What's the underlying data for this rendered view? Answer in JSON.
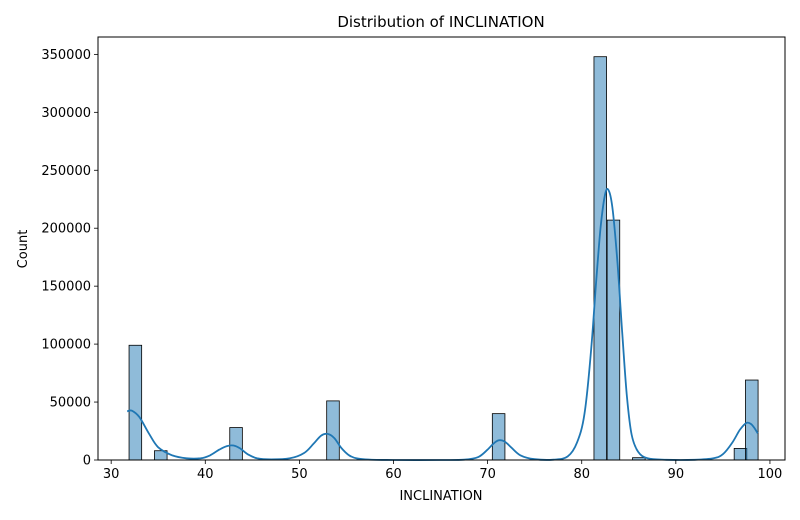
{
  "chart_data": {
    "type": "bar",
    "title": "Distribution of INCLINATION",
    "xlabel": "INCLINATION",
    "ylabel": "Count",
    "xlim": [
      28.6,
      101.6
    ],
    "ylim": [
      0,
      365000
    ],
    "xticks": [
      30,
      40,
      50,
      60,
      70,
      80,
      90,
      100
    ],
    "yticks": [
      0,
      50000,
      100000,
      150000,
      200000,
      250000,
      300000,
      350000
    ],
    "bar_color": "#1f77b4",
    "bin_width": 1.34,
    "bins": [
      {
        "start": 31.9,
        "count": 99000
      },
      {
        "start": 34.6,
        "count": 8000
      },
      {
        "start": 42.6,
        "count": 28000
      },
      {
        "start": 52.9,
        "count": 51000
      },
      {
        "start": 70.5,
        "count": 40000
      },
      {
        "start": 81.3,
        "count": 348000
      },
      {
        "start": 82.7,
        "count": 207000
      },
      {
        "start": 85.4,
        "count": 2000
      },
      {
        "start": 96.2,
        "count": 10000
      },
      {
        "start": 97.4,
        "count": 69000
      }
    ],
    "kde": {
      "x": [
        31.7,
        32.2,
        33.0,
        34.0,
        35.0,
        36.5,
        38.0,
        39.5,
        40.5,
        41.5,
        42.3,
        43.0,
        43.7,
        44.5,
        45.5,
        47.0,
        49.0,
        50.5,
        51.5,
        52.3,
        53.0,
        53.7,
        54.5,
        55.5,
        57.0,
        60.0,
        65.0,
        67.5,
        69.0,
        70.0,
        70.6,
        71.2,
        71.8,
        72.5,
        73.5,
        75.0,
        77.0,
        78.5,
        79.5,
        80.3,
        81.0,
        81.5,
        82.0,
        82.5,
        82.9,
        83.3,
        83.8,
        84.3,
        84.8,
        85.3,
        86.0,
        87.0,
        89.0,
        92.0,
        94.0,
        95.0,
        96.0,
        96.8,
        97.5,
        98.0,
        98.4,
        98.7
      ],
      "y": [
        42000,
        42500,
        37000,
        23000,
        11000,
        4000,
        1500,
        1500,
        4000,
        9000,
        12000,
        12500,
        10000,
        5000,
        1500,
        500,
        1500,
        6000,
        14000,
        21000,
        22500,
        19000,
        10000,
        3000,
        500,
        0,
        0,
        300,
        2500,
        9000,
        14000,
        17000,
        16000,
        11000,
        4000,
        700,
        300,
        3000,
        15000,
        40000,
        95000,
        150000,
        200000,
        230000,
        232000,
        215000,
        170000,
        110000,
        55000,
        22000,
        7000,
        1500,
        200,
        200,
        1500,
        5000,
        15000,
        26000,
        32000,
        31000,
        27000,
        23000
      ]
    }
  }
}
